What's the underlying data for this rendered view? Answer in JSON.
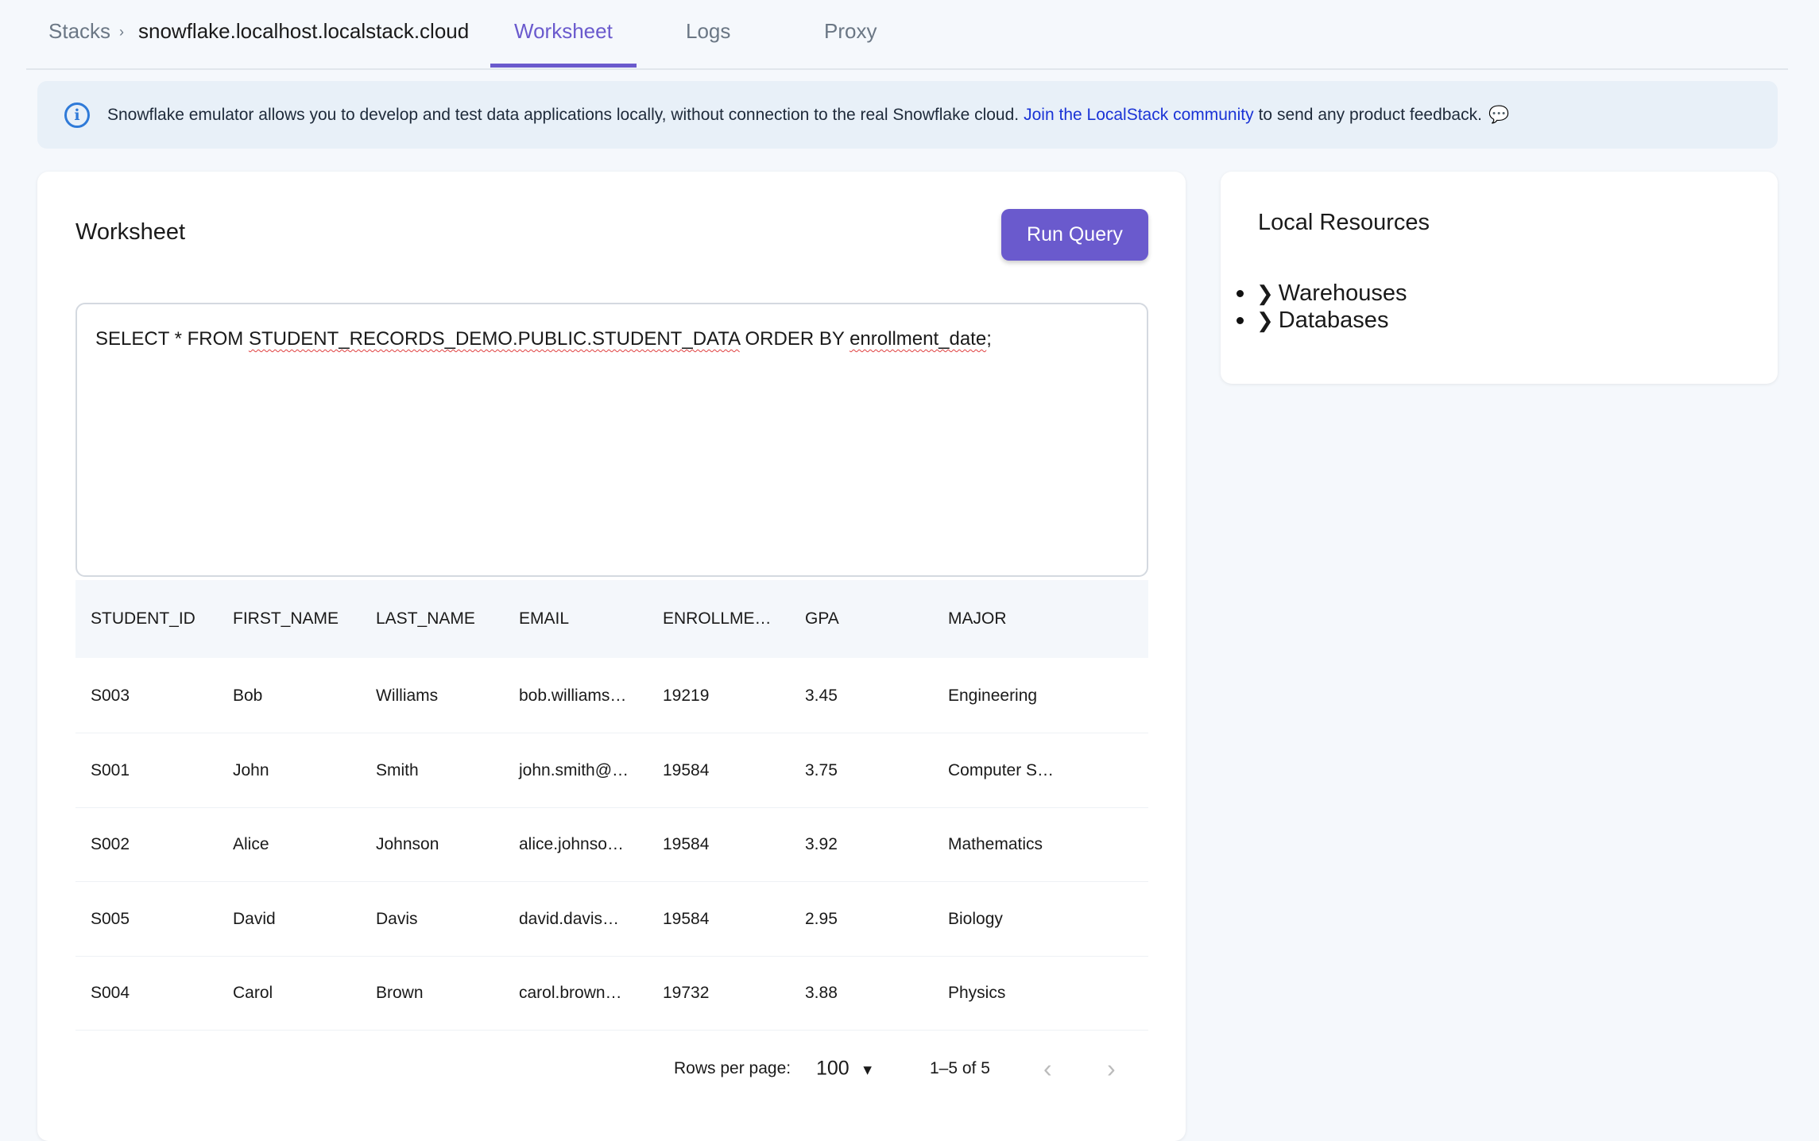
{
  "breadcrumb": {
    "root": "Stacks",
    "separator": "›",
    "current": "snowflake.localhost.localstack.cloud"
  },
  "tabs": [
    {
      "label": "Worksheet",
      "active": true
    },
    {
      "label": "Logs"
    },
    {
      "label": "Proxy"
    }
  ],
  "banner": {
    "icon": "info-icon",
    "text": "Snowflake emulator allows you to develop and test data applications locally, without connection to the real Snowflake cloud.",
    "link": "Join the LocalStack community",
    "suffix": "to send any product feedback.",
    "trail_icon": "chat-bubble-icon"
  },
  "worksheet": {
    "title": "Worksheet",
    "run_label": "Run Query",
    "query": {
      "p1": "SELECT * FROM ",
      "p2": "STUDENT_RECORDS_DEMO.PUBLIC.STUDENT_DATA",
      "p3": " ORDER BY ",
      "p4": "enrollment_date",
      "p5": ";"
    }
  },
  "table": {
    "columns": [
      "STUDENT_ID",
      "FIRST_NAME",
      "LAST_NAME",
      "EMAIL",
      "ENROLLME…",
      "GPA",
      "MAJOR"
    ],
    "rows": [
      [
        "S003",
        "Bob",
        "Williams",
        "bob.williams…",
        "19219",
        "3.45",
        "Engineering"
      ],
      [
        "S001",
        "John",
        "Smith",
        "john.smith@…",
        "19584",
        "3.75",
        "Computer S…"
      ],
      [
        "S002",
        "Alice",
        "Johnson",
        "alice.johnso…",
        "19584",
        "3.92",
        "Mathematics"
      ],
      [
        "S005",
        "David",
        "Davis",
        "david.davis…",
        "19584",
        "2.95",
        "Biology"
      ],
      [
        "S004",
        "Carol",
        "Brown",
        "carol.brown…",
        "19732",
        "3.88",
        "Physics"
      ]
    ],
    "footer": {
      "rows_label": "Rows per page:",
      "rows_value": "100",
      "range": "1–5 of 5"
    }
  },
  "resources": {
    "title": "Local Resources",
    "items": [
      "Warehouses",
      "Databases"
    ]
  },
  "colors": {
    "accent": "#6a5acd",
    "link": "#1a33d6",
    "info": "#2f7ad8"
  }
}
